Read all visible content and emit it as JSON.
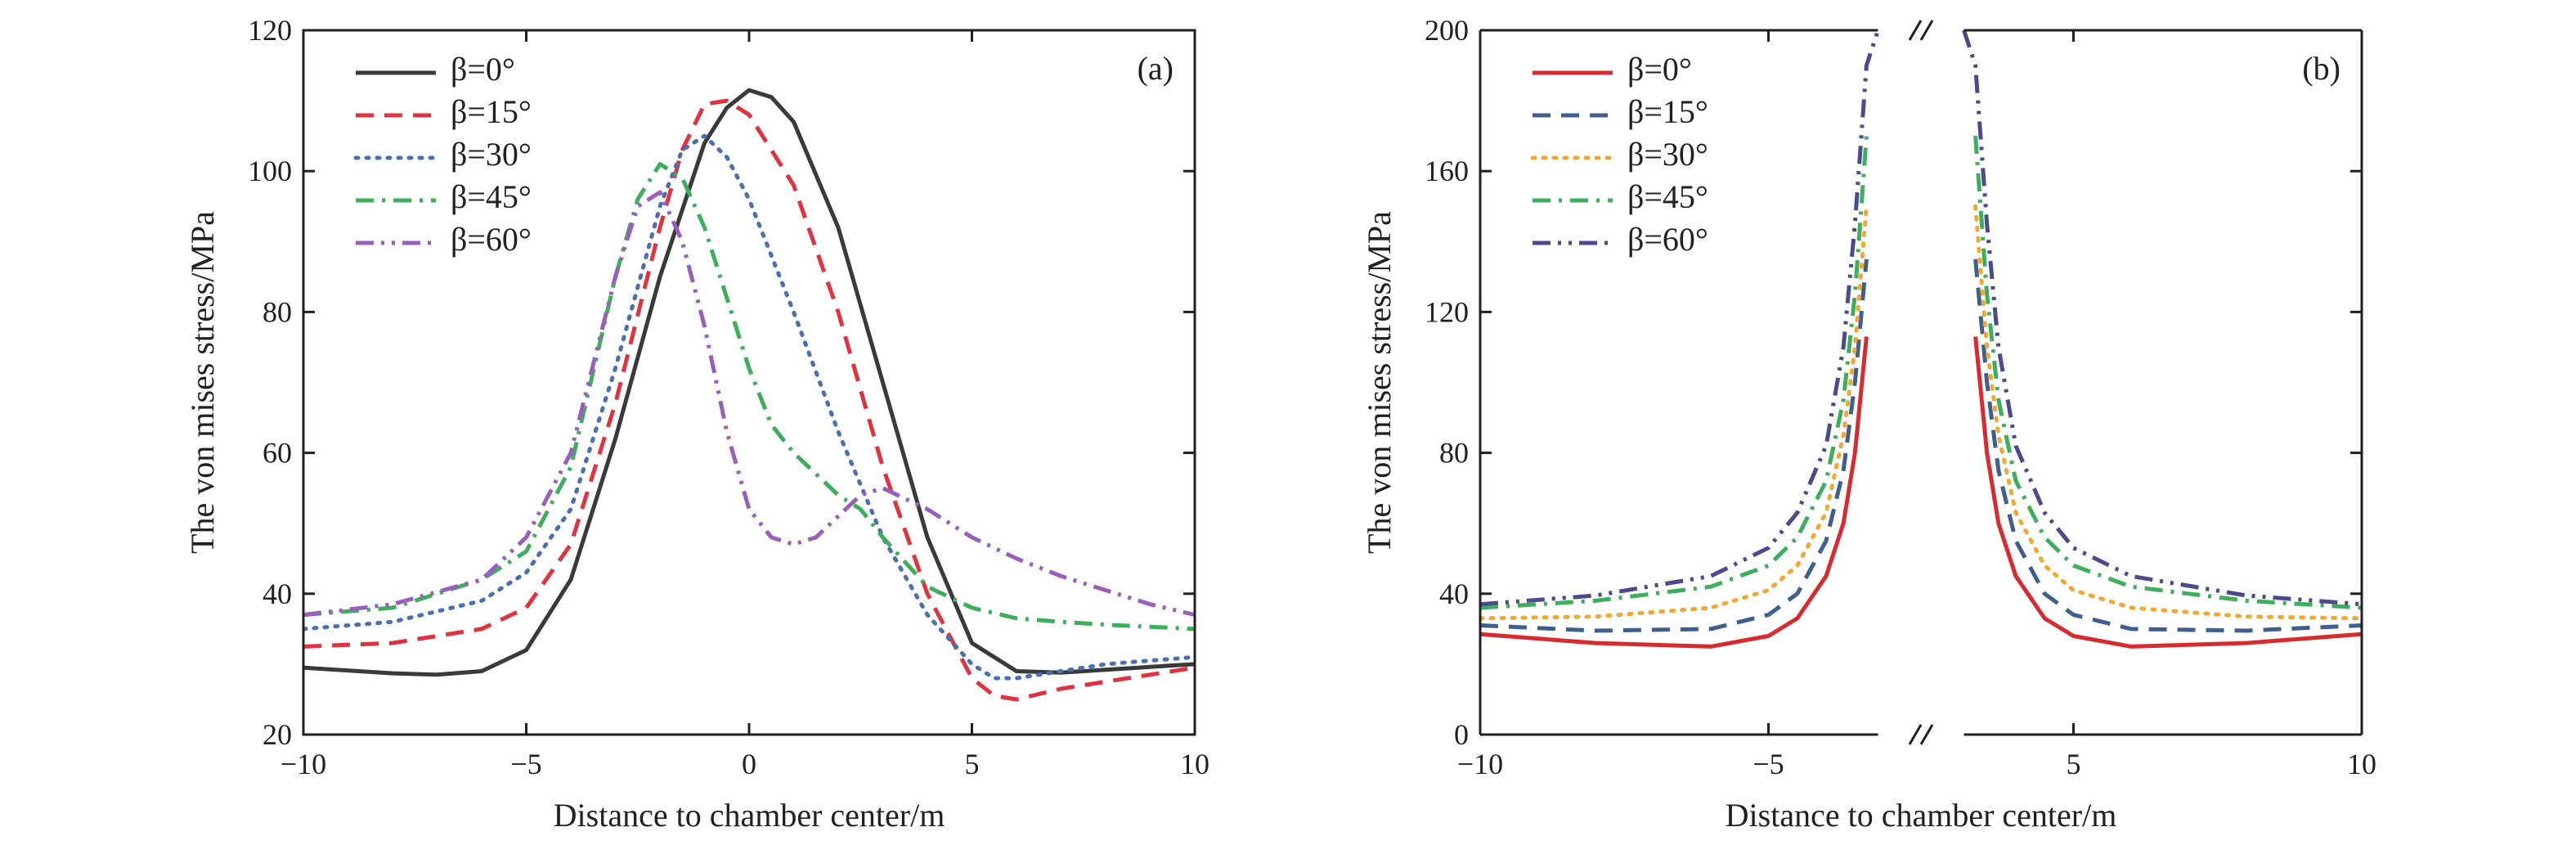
{
  "chart_data": [
    {
      "type": "line",
      "panel_label": "(a)",
      "xlabel": "Distance to chamber center/m",
      "ylabel": "The von mises stress/MPa",
      "xlim": [
        -10,
        10
      ],
      "ylim": [
        20,
        120
      ],
      "x_ticks": [
        -10,
        -5,
        0,
        5,
        10
      ],
      "y_ticks": [
        20,
        40,
        60,
        80,
        100,
        120
      ],
      "x_tick_labels": [
        "−10",
        "−5",
        "0",
        "5",
        "10"
      ],
      "y_tick_labels": [
        "20",
        "40",
        "60",
        "80",
        "100",
        "120"
      ],
      "legend_position": "top-left",
      "series": [
        {
          "name": "β=0°",
          "color": "#3a3a3a",
          "dash": "solid",
          "x": [
            -10,
            -8,
            -7,
            -6,
            -5,
            -4,
            -3,
            -2,
            -1,
            -0.5,
            0,
            0.5,
            1,
            2,
            3,
            4,
            5,
            6,
            7,
            8,
            9,
            10
          ],
          "y": [
            29.5,
            28.7,
            28.5,
            29,
            32,
            42,
            62,
            85,
            104,
            109,
            111.5,
            110.5,
            107,
            92,
            70,
            48,
            33,
            29,
            28.8,
            29.2,
            29.6,
            30
          ]
        },
        {
          "name": "β=15°",
          "color": "#e0333f",
          "dash": "dash",
          "x": [
            -10,
            -8,
            -6,
            -5,
            -4,
            -3,
            -2,
            -1.5,
            -1,
            -0.5,
            0,
            1,
            2,
            3,
            4,
            5,
            5.5,
            6,
            7,
            8,
            9,
            10
          ],
          "y": [
            32.5,
            33,
            35,
            38,
            47,
            67,
            92,
            103,
            109.5,
            110,
            108,
            98,
            80,
            58,
            40,
            28,
            25.5,
            25,
            26.5,
            27.5,
            28.5,
            29.5
          ]
        },
        {
          "name": "β=30°",
          "color": "#4a6fb0",
          "dash": "dot",
          "x": [
            -10,
            -8,
            -6,
            -5,
            -4,
            -3,
            -2,
            -1.5,
            -1,
            -0.5,
            0,
            1,
            2,
            3,
            4,
            5,
            5.5,
            6,
            7,
            8,
            9,
            10
          ],
          "y": [
            35,
            36,
            39,
            43,
            52,
            72,
            95,
            103,
            105,
            102,
            96,
            80,
            63,
            48,
            37,
            30,
            28,
            28,
            29,
            30,
            30.5,
            31
          ]
        },
        {
          "name": "β=45°",
          "color": "#3dae5c",
          "dash": "dashdot",
          "x": [
            -10,
            -8,
            -6,
            -5,
            -4,
            -3,
            -2.5,
            -2,
            -1.5,
            -1,
            -0.5,
            0,
            0.5,
            1,
            1.5,
            2,
            2.5,
            3,
            4,
            5,
            6,
            7,
            8,
            9,
            10
          ],
          "y": [
            37,
            38,
            42,
            46,
            58,
            85,
            96,
            101,
            99,
            92,
            82,
            72,
            64,
            60,
            57,
            54,
            52,
            48,
            41,
            38,
            36.5,
            36,
            35.6,
            35.3,
            35
          ]
        },
        {
          "name": "β=60°",
          "color": "#9a5fbc",
          "dash": "dashdotdot",
          "x": [
            -10,
            -8,
            -6,
            -5,
            -4,
            -3,
            -2.5,
            -2,
            -1.5,
            -1,
            -0.5,
            0,
            0.5,
            1,
            1.5,
            2,
            2.5,
            3,
            4,
            5,
            6,
            7,
            8,
            9,
            10
          ],
          "y": [
            37,
            38.5,
            42,
            48,
            60,
            85,
            95,
            97,
            90,
            78,
            63,
            52,
            48,
            47,
            48,
            51,
            54,
            55,
            52,
            48,
            45,
            42.5,
            40.5,
            38.5,
            37
          ]
        }
      ]
    },
    {
      "type": "line",
      "panel_label": "(b)",
      "xlabel": "Distance to chamber center/m",
      "ylabel": "The von mises stress/MPa",
      "xlim": [
        -10,
        10
      ],
      "ylim": [
        0,
        200
      ],
      "axis_break": [
        -3.1,
        3.1
      ],
      "x_ticks": [
        -10,
        -5,
        5,
        10
      ],
      "y_ticks": [
        0,
        40,
        80,
        120,
        160,
        200
      ],
      "x_tick_labels": [
        "−10",
        "−5",
        "5",
        "10"
      ],
      "y_tick_labels": [
        "0",
        "40",
        "80",
        "120",
        "160",
        "200"
      ],
      "legend_position": "top-left",
      "series": [
        {
          "name": "β=0°",
          "color": "#d92b2f",
          "dash": "solid",
          "left": {
            "x": [
              -10,
              -8,
              -6,
              -5,
              -4.5,
              -4,
              -3.7,
              -3.5,
              -3.3
            ],
            "y": [
              28.5,
              26,
              25,
              28,
              33,
              45,
              60,
              80,
              113
            ]
          },
          "right": {
            "x": [
              3.3,
              3.5,
              3.7,
              4,
              4.5,
              5,
              6,
              8,
              10
            ],
            "y": [
              113,
              80,
              60,
              45,
              33,
              28,
              25,
              26,
              28.5
            ]
          }
        },
        {
          "name": "β=15°",
          "color": "#3f5f8f",
          "dash": "dash",
          "left": {
            "x": [
              -10,
              -8,
              -6,
              -5,
              -4.5,
              -4,
              -3.7,
              -3.5,
              -3.3
            ],
            "y": [
              31,
              29.5,
              30,
              34,
              40,
              55,
              75,
              100,
              135
            ]
          },
          "right": {
            "x": [
              3.3,
              3.5,
              3.7,
              4,
              4.5,
              5,
              6,
              8,
              10
            ],
            "y": [
              135,
              100,
              75,
              55,
              40,
              34,
              30,
              29.5,
              31
            ]
          }
        },
        {
          "name": "β=30°",
          "color": "#f0a830",
          "dash": "dot",
          "left": {
            "x": [
              -10,
              -8,
              -6,
              -5,
              -4.5,
              -4,
              -3.7,
              -3.5,
              -3.3
            ],
            "y": [
              33,
              33.5,
              36,
              41,
              48,
              63,
              85,
              110,
              150
            ]
          },
          "right": {
            "x": [
              3.3,
              3.5,
              3.7,
              4,
              4.5,
              5,
              6,
              8,
              10
            ],
            "y": [
              150,
              110,
              85,
              63,
              48,
              41,
              36,
              33.5,
              33
            ]
          }
        },
        {
          "name": "β=45°",
          "color": "#3dae5c",
          "dash": "dashdot",
          "left": {
            "x": [
              -10,
              -8,
              -6,
              -5,
              -4.5,
              -4,
              -3.7,
              -3.5,
              -3.3
            ],
            "y": [
              36,
              38,
              42,
              48,
              56,
              72,
              95,
              125,
              170
            ]
          },
          "right": {
            "x": [
              3.3,
              3.5,
              3.7,
              4,
              4.5,
              5,
              6,
              8,
              10
            ],
            "y": [
              170,
              125,
              95,
              72,
              56,
              48,
              42,
              38,
              36
            ]
          }
        },
        {
          "name": "β=60°",
          "color": "#4a4a8c",
          "dash": "dashdotdot",
          "left": {
            "x": [
              -10,
              -8,
              -6,
              -5,
              -4.5,
              -4,
              -3.7,
              -3.5,
              -3.3,
              -3.1
            ],
            "y": [
              37,
              39.5,
              45,
              53,
              63,
              82,
              110,
              145,
              190,
              200
            ]
          },
          "right": {
            "x": [
              3.1,
              3.3,
              3.5,
              3.7,
              4,
              4.5,
              5,
              6,
              8,
              10
            ],
            "y": [
              200,
              190,
              145,
              110,
              82,
              63,
              53,
              45,
              39.5,
              37
            ]
          }
        }
      ]
    }
  ]
}
